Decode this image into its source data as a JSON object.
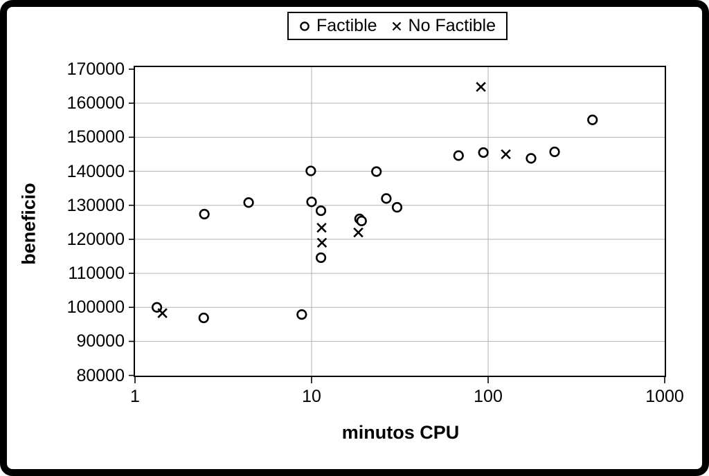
{
  "legend": {
    "factible_label": "Factible",
    "no_factible_label": "No Factible"
  },
  "colors": {
    "marker": "#000000",
    "gridline": "#b3b3b3",
    "frame": "#000000",
    "background": "#ffffff"
  },
  "chart_data": {
    "type": "scatter",
    "title": "",
    "xlabel": "minutos CPU",
    "ylabel": "beneficio",
    "x_scale": "log",
    "y_scale": "linear",
    "xlim": [
      1,
      1000
    ],
    "ylim": [
      80000,
      170000
    ],
    "x_ticks": [
      "1",
      "10",
      "100",
      "1000"
    ],
    "y_ticks": [
      "80000",
      "90000",
      "100000",
      "110000",
      "120000",
      "130000",
      "140000",
      "150000",
      "160000",
      "170000"
    ],
    "grid": true,
    "legend_position": "top-center",
    "series": [
      {
        "name": "Factible",
        "marker": "circle",
        "points": [
          [
            1.33,
            100000
          ],
          [
            2.45,
            96900
          ],
          [
            2.47,
            127400
          ],
          [
            4.4,
            130800
          ],
          [
            8.8,
            97900
          ],
          [
            9.9,
            140100
          ],
          [
            10.0,
            131000
          ],
          [
            11.3,
            128400
          ],
          [
            11.3,
            114600
          ],
          [
            18.7,
            126000
          ],
          [
            19.2,
            125400
          ],
          [
            23.3,
            139900
          ],
          [
            26.5,
            132000
          ],
          [
            30.5,
            129400
          ],
          [
            68,
            144600
          ],
          [
            94,
            145500
          ],
          [
            175,
            143800
          ],
          [
            238,
            145700
          ],
          [
            390,
            155100
          ]
        ]
      },
      {
        "name": "No Factible",
        "marker": "x",
        "points": [
          [
            1.43,
            98300
          ],
          [
            11.4,
            123400
          ],
          [
            11.45,
            119000
          ],
          [
            18.4,
            122000
          ],
          [
            91,
            164800
          ],
          [
            126,
            145000
          ]
        ]
      }
    ]
  }
}
